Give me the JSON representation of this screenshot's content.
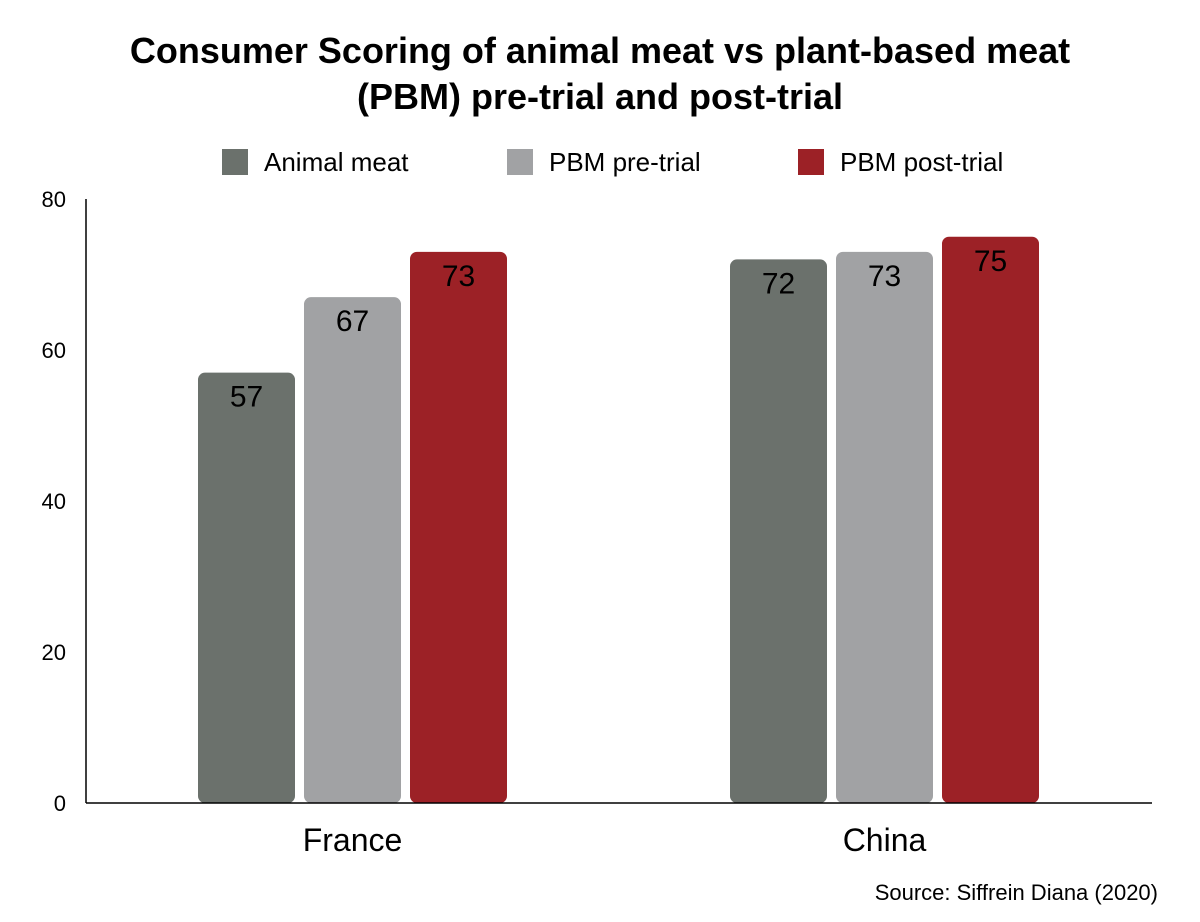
{
  "title_line1": "Consumer Scoring of animal meat vs plant-based meat",
  "title_line2": "(PBM) pre-trial and post-trial",
  "source": "Source: Siffrein Diana (2020)",
  "colors": {
    "animal_meat": "#6b716c",
    "pbm_pre": "#a1a2a4",
    "pbm_post": "#9c2126",
    "axis": "#000000"
  },
  "chart_data": {
    "type": "bar",
    "title": "Consumer Scoring of animal meat vs plant-based meat (PBM) pre-trial and post-trial",
    "categories": [
      "France",
      "China"
    ],
    "series": [
      {
        "name": "Animal meat",
        "values": [
          57,
          72
        ]
      },
      {
        "name": "PBM pre-trial",
        "values": [
          67,
          73
        ]
      },
      {
        "name": "PBM post-trial",
        "values": [
          73,
          75
        ]
      }
    ],
    "ylim": [
      0,
      80
    ],
    "yticks": [
      "0",
      "20",
      "40",
      "60",
      "80"
    ],
    "grid": false,
    "legend_position": "top",
    "data_labels": true
  }
}
